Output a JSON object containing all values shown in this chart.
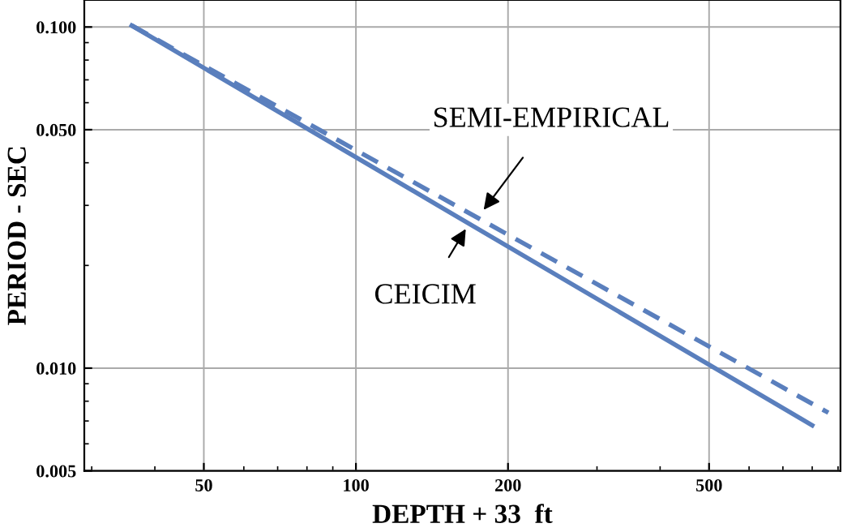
{
  "chart_data": {
    "type": "line",
    "xlabel": "DEPTH + 33  ft",
    "ylabel": "PERIOD - SEC",
    "log": "xy",
    "grid": true,
    "xlim": [
      29,
      910
    ],
    "ylim": [
      0.005,
      0.12
    ],
    "xticks": [
      50,
      100,
      200,
      500
    ],
    "yticks": [
      {
        "value": 0.005,
        "label": "0.005"
      },
      {
        "value": 0.01,
        "label": "0.010"
      },
      {
        "value": 0.05,
        "label": "0.050"
      },
      {
        "value": 0.1,
        "label": "0.100"
      }
    ],
    "series": [
      {
        "x": [
          36,
          800
        ],
        "values": [
          0.101,
          0.0068
        ],
        "color": "#5a7fbd",
        "line_style": "solid"
      },
      {
        "x": [
          36,
          861
        ],
        "values": [
          0.101,
          0.0074
        ],
        "color": "#5a7fbd",
        "line_style": "dashed"
      }
    ],
    "annotations": [
      {
        "text": "SEMI-EMPIRICAL",
        "x": 179,
        "y": 0.0291
      },
      {
        "text": "CEICIM",
        "x": 165,
        "y": 0.0256
      }
    ]
  }
}
